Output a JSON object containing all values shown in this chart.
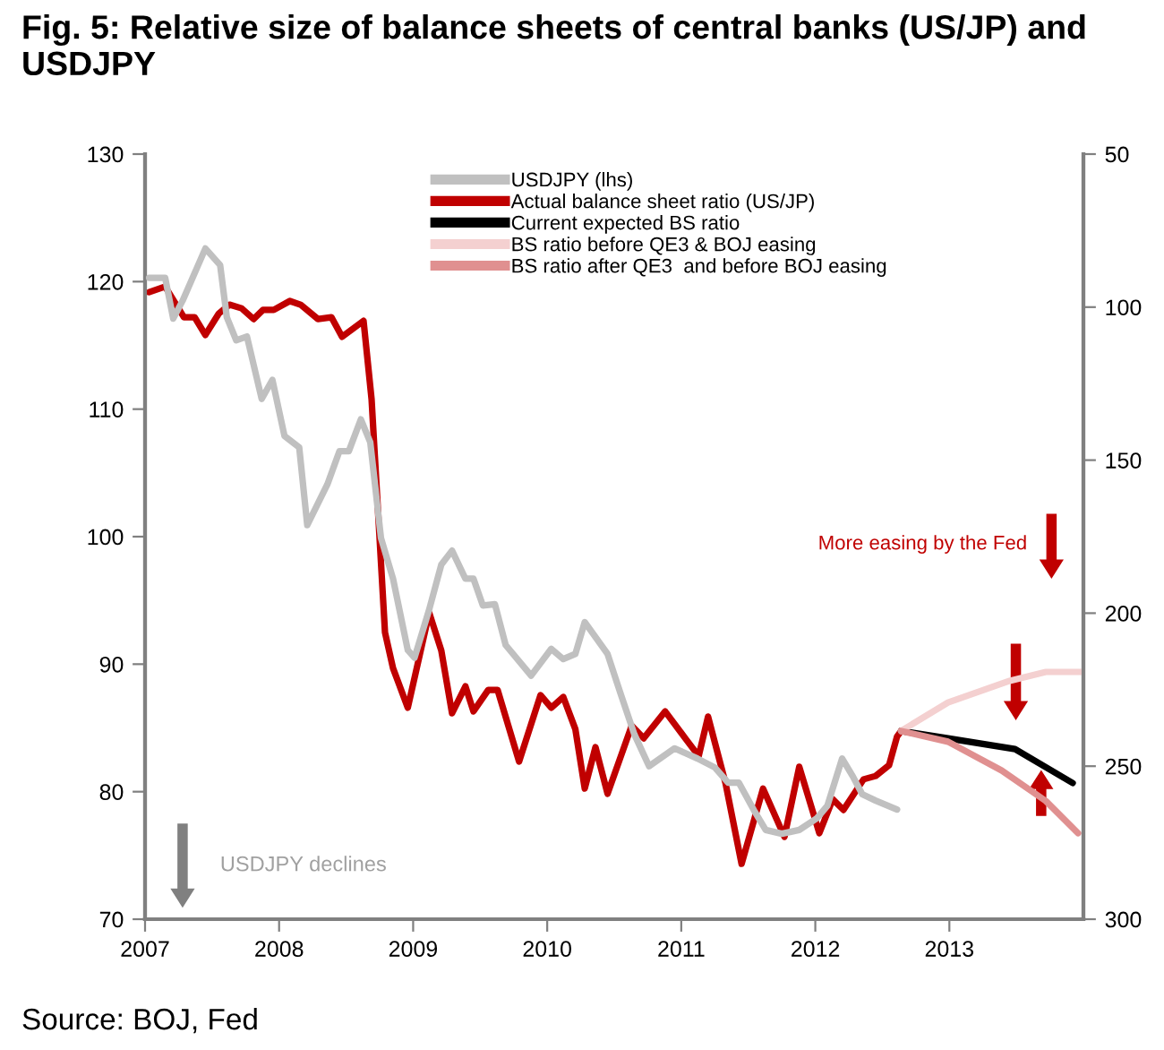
{
  "chart_data": {
    "type": "line",
    "title": "Fig. 5: Relative size of balance sheets of central banks (US/JP) and USDJPY",
    "xlim": [
      2007,
      2014
    ],
    "xticks": [
      2007,
      2008,
      2009,
      2010,
      2011,
      2012,
      2013
    ],
    "ylim": [
      70,
      130
    ],
    "yticks": [
      70,
      80,
      90,
      100,
      110,
      120,
      130
    ],
    "y2lim": [
      300,
      50
    ],
    "y2ticks": [
      50,
      100,
      150,
      200,
      250,
      300
    ],
    "grid": false,
    "legend": "top",
    "marker": "none",
    "line_style": "solid",
    "annotations": [
      "More easing by the Fed",
      "USDJPY declines",
      "Source: BOJ, Fed"
    ],
    "series": [
      {
        "name": "USDJPY (lhs)",
        "color": "#c0c0c0",
        "x": [
          2007.03,
          2007.15,
          2007.21,
          2007.28,
          2007.45,
          2007.56,
          2007.61,
          2007.68,
          2007.76,
          2007.87,
          2007.95,
          2008.04,
          2008.15,
          2008.21,
          2008.36,
          2008.45,
          2008.52,
          2008.61,
          2008.68,
          2008.76,
          2008.85,
          2008.96,
          2009.01,
          2009.12,
          2009.21,
          2009.29,
          2009.39,
          2009.45,
          2009.52,
          2009.61,
          2009.69,
          2009.88,
          2010.03,
          2010.12,
          2010.21,
          2010.28,
          2010.45,
          2010.55,
          2010.65,
          2010.76,
          2010.95,
          2011.12,
          2011.25,
          2011.35,
          2011.43,
          2011.55,
          2011.63,
          2011.75,
          2011.88,
          2012.01,
          2012.09,
          2012.2,
          2012.28,
          2012.35,
          2012.45,
          2012.61
        ],
        "values": [
          120.3,
          120.3,
          117.1,
          118.5,
          122.6,
          121.3,
          117.2,
          115.4,
          115.7,
          110.8,
          112.3,
          107.9,
          107.0,
          100.9,
          104.1,
          106.7,
          106.7,
          109.2,
          107.4,
          99.9,
          96.7,
          91.1,
          90.5,
          94.3,
          97.8,
          98.9,
          96.7,
          96.7,
          94.6,
          94.7,
          91.5,
          89.1,
          91.2,
          90.4,
          90.8,
          93.3,
          90.8,
          87.6,
          84.5,
          82.0,
          83.4,
          82.6,
          81.9,
          80.7,
          80.7,
          78.4,
          77.0,
          76.7,
          77.0,
          77.9,
          78.9,
          82.6,
          81.2,
          79.8,
          79.3,
          78.6
        ]
      },
      {
        "name": "Actual balance sheet ratio (US/JP)",
        "color": "#c00000",
        "axis": "y2",
        "x": [
          2007.03,
          2007.15,
          2007.29,
          2007.37,
          2007.45,
          2007.55,
          2007.63,
          2007.72,
          2007.81,
          2007.88,
          2007.96,
          2008.08,
          2008.16,
          2008.29,
          2008.39,
          2008.47,
          2008.63,
          2008.69,
          2008.79,
          2008.85,
          2008.96,
          2009.12,
          2009.21,
          2009.29,
          2009.39,
          2009.45,
          2009.56,
          2009.63,
          2009.79,
          2009.95,
          2010.03,
          2010.12,
          2010.21,
          2010.28,
          2010.36,
          2010.45,
          2010.63,
          2010.72,
          2010.88,
          2011.03,
          2011.13,
          2011.2,
          2011.33,
          2011.45,
          2011.61,
          2011.77,
          2011.88,
          2012.03,
          2012.13,
          2012.21,
          2012.36,
          2012.45,
          2012.55,
          2012.61,
          2012.64
        ],
        "values": [
          95.1,
          93.3,
          103.3,
          103.3,
          109.1,
          102.1,
          99.2,
          100.4,
          103.9,
          100.9,
          100.9,
          98.0,
          99.2,
          103.9,
          103.3,
          109.7,
          104.5,
          130.2,
          206.3,
          218.0,
          230.9,
          199.9,
          212.2,
          232.7,
          223.9,
          232.1,
          225.1,
          225.1,
          248.5,
          226.8,
          230.9,
          227.4,
          237.9,
          257.3,
          243.8,
          259.0,
          236.8,
          240.9,
          232.1,
          240.9,
          246.7,
          233.8,
          255.5,
          281.9,
          257.3,
          273.1,
          250.2,
          271.9,
          260.8,
          264.3,
          254.3,
          253.2,
          249.7,
          240.3,
          238.5
        ]
      },
      {
        "name": "Current expected BS ratio",
        "color": "#000000",
        "axis": "y2",
        "x": [
          2012.64,
          2012.99,
          2013.49,
          2013.92
        ],
        "values": [
          238.5,
          240.9,
          244.4,
          255.5
        ]
      },
      {
        "name": "BS ratio before QE3 & BOJ easing",
        "color": "#f4d0d0",
        "axis": "y2",
        "x": [
          2012.64,
          2012.99,
          2013.45,
          2013.72,
          2013.99
        ],
        "values": [
          238.5,
          229.2,
          222.1,
          219.2,
          219.2
        ]
      },
      {
        "name": "BS ratio after QE3  and before BOJ easing",
        "color": "#e09090",
        "axis": "y2",
        "x": [
          2012.64,
          2012.99,
          2013.39,
          2013.72,
          2013.96
        ],
        "values": [
          238.5,
          242.0,
          251.4,
          261.4,
          271.9
        ]
      }
    ]
  }
}
